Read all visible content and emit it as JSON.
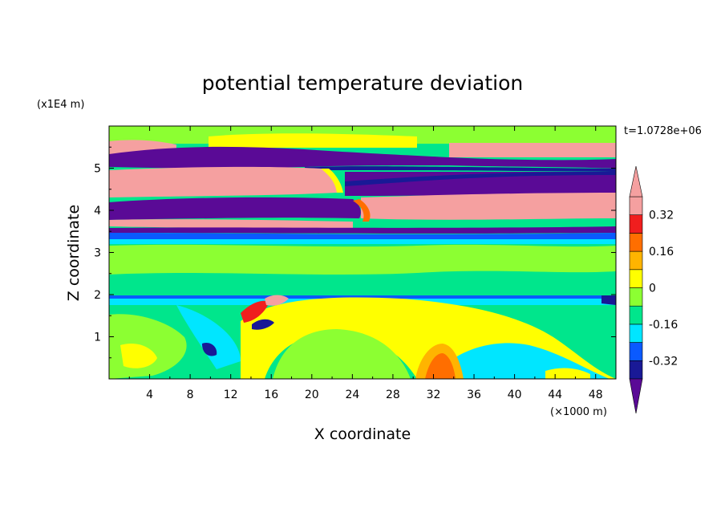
{
  "chart_data": {
    "type": "heatmap",
    "title": "potential temperature deviation",
    "xlabel": "X coordinate",
    "ylabel": "Z coordinate",
    "x_unit": "(×1000 m)",
    "y_unit": "(x1E4 m)",
    "time_label": "t=1.0728e+06",
    "xlim": [
      0,
      50
    ],
    "ylim": [
      0,
      6
    ],
    "x_ticks": [
      4,
      8,
      12,
      16,
      20,
      24,
      28,
      32,
      36,
      40,
      44,
      48
    ],
    "y_ticks": [
      1,
      2,
      3,
      4,
      5
    ],
    "colorbar": {
      "levels": [
        -0.4,
        -0.32,
        -0.24,
        -0.16,
        -0.08,
        0,
        0.08,
        0.16,
        0.24,
        0.32,
        0.4
      ],
      "labels": [
        "0.32",
        "0.16",
        "0",
        "-0.16",
        "-0.32"
      ],
      "label_values": [
        0.32,
        0.16,
        0,
        -0.16,
        -0.32
      ],
      "colors": [
        "#5a0a96",
        "#191996",
        "#0a5aff",
        "#00e6ff",
        "#00e68c",
        "#8cff32",
        "#ffff00",
        "#ffb400",
        "#ff6e00",
        "#f01e1e",
        "#f5a0a0"
      ]
    },
    "layers": [
      {
        "z_range": [
          5.6,
          6.0
        ],
        "pattern": "warm/neutral mixed (green, yellow, pink)"
      },
      {
        "z_range": [
          5.1,
          5.5
        ],
        "pattern": "cold (purple)"
      },
      {
        "z_range": [
          4.4,
          5.0
        ],
        "pattern": "warm (pink) west, cold (purple) east"
      },
      {
        "z_range": [
          3.7,
          4.4
        ],
        "pattern": "cold (purple) west, warm (pink) east"
      },
      {
        "z_range": [
          2.0,
          3.6
        ],
        "pattern": "near zero (green/light green)"
      },
      {
        "z_range": [
          0.0,
          2.0
        ],
        "pattern": "mixed; warm maximum near x=32 at surface"
      }
    ]
  }
}
